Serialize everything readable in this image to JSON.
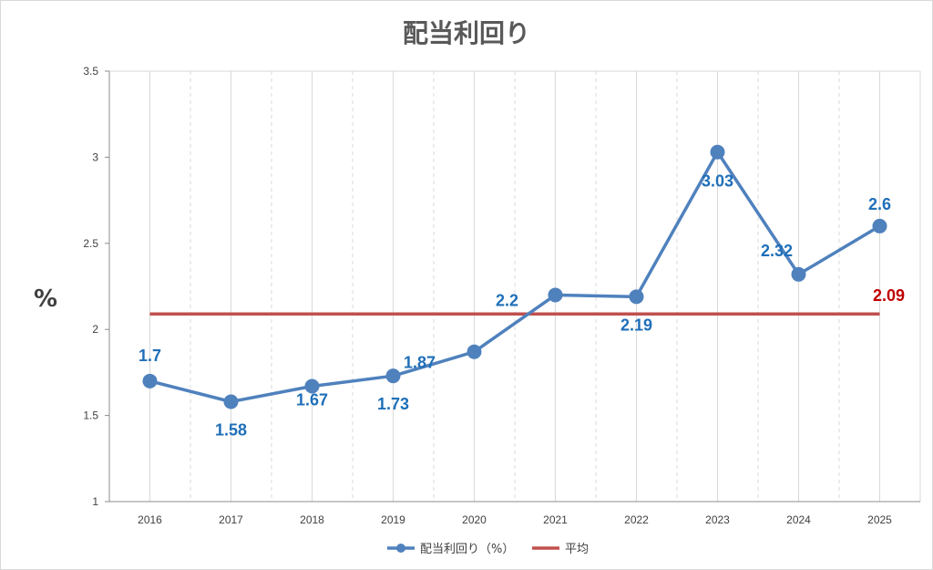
{
  "chart_data": {
    "type": "line",
    "title": "配当利回り",
    "ylabel": "%",
    "xlabel": "",
    "categories": [
      "2016",
      "2017",
      "2018",
      "2019",
      "2020",
      "2021",
      "2022",
      "2023",
      "2024",
      "2025"
    ],
    "ylim": [
      1,
      3.5
    ],
    "yticks": [
      "1",
      "1.5",
      "2",
      "2.5",
      "3",
      "3.5"
    ],
    "grid": true,
    "legend_position": "bottom",
    "series": [
      {
        "name": "配当利回り（%）",
        "values": [
          1.7,
          1.58,
          1.67,
          1.73,
          1.87,
          2.2,
          2.19,
          3.03,
          2.32,
          2.6
        ],
        "labels": [
          "1.7",
          "1.58",
          "1.67",
          "1.73",
          "1.87",
          "2.2",
          "2.19",
          "3.03",
          "2.32",
          "2.6"
        ],
        "color": "#4f81bd",
        "label_color": "#1f6fb8"
      },
      {
        "name": "平均",
        "values": [
          2.09,
          2.09,
          2.09,
          2.09,
          2.09,
          2.09,
          2.09,
          2.09,
          2.09,
          2.09
        ],
        "label": "2.09",
        "color": "#c0504d",
        "label_color": "#c00000"
      }
    ]
  }
}
